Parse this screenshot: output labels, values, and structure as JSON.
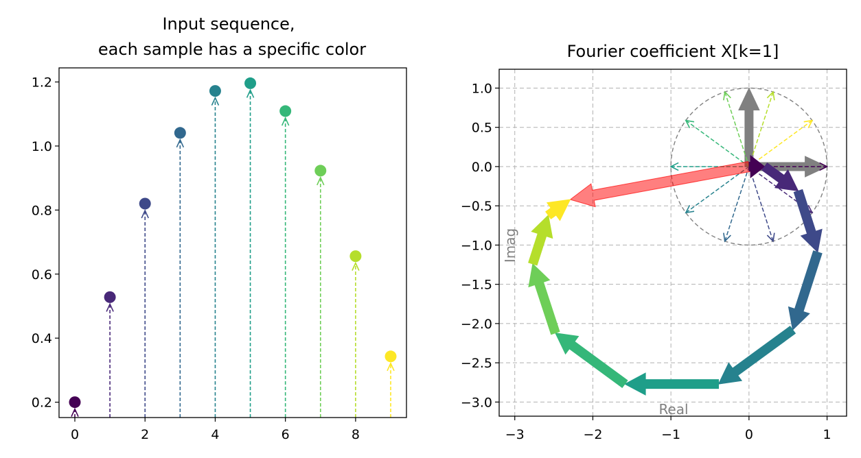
{
  "chart_data": [
    {
      "type": "stem",
      "title_lines": [
        "Input sequence,",
        "each sample has a specific color"
      ],
      "xlabel": "",
      "ylabel": "",
      "x": [
        0,
        1,
        2,
        3,
        4,
        5,
        6,
        7,
        8,
        9
      ],
      "values": [
        0.2,
        0.528,
        0.82,
        1.041,
        1.172,
        1.196,
        1.109,
        0.923,
        0.656,
        0.343
      ],
      "colors": [
        "#440154",
        "#482878",
        "#3e4989",
        "#31688e",
        "#26828e",
        "#1f9e89",
        "#35b779",
        "#6ece58",
        "#b5de2b",
        "#fde725"
      ],
      "xlim": [
        -0.45,
        9.45
      ],
      "ylim": [
        0.152,
        1.244
      ],
      "xticks": [
        0,
        2,
        4,
        6,
        8
      ],
      "yticks": [
        0.2,
        0.4,
        0.6,
        0.8,
        1.0,
        1.2
      ],
      "ytick_labels": [
        "0.2",
        "0.4",
        "0.6",
        "0.8",
        "1.0",
        "1.2"
      ],
      "grid": false
    },
    {
      "type": "phasor",
      "title": "Fourier coefficient X[k=1]",
      "xlabel": "Real",
      "ylabel": "Imag",
      "xlim": [
        -3.2,
        1.25
      ],
      "ylim": [
        -3.18,
        1.24
      ],
      "xticks": [
        -3,
        -2,
        -1,
        0,
        1
      ],
      "xtick_labels": [
        "−3",
        "−2",
        "−1",
        "0",
        "1"
      ],
      "yticks": [
        1.0,
        0.5,
        0.0,
        -0.5,
        -1.0,
        -1.5,
        -2.0,
        -2.5,
        -3.0
      ],
      "ytick_labels": [
        "1.0",
        "0.5",
        "0.0",
        "−0.5",
        "−1.0",
        "−1.5",
        "−2.0",
        "−2.5",
        "−3.0"
      ],
      "grid": true,
      "unit_circle": true,
      "basis_axes": {
        "color": "#808080",
        "real_end": [
          1.0,
          0.0
        ],
        "imag_end": [
          0.0,
          1.0
        ]
      },
      "rotating_unit_vectors": [
        {
          "angle_deg": 0,
          "color": "#440154"
        },
        {
          "angle_deg": -36,
          "color": "#482878"
        },
        {
          "angle_deg": -72,
          "color": "#3e4989"
        },
        {
          "angle_deg": -108,
          "color": "#31688e"
        },
        {
          "angle_deg": -144,
          "color": "#26828e"
        },
        {
          "angle_deg": 180,
          "color": "#1f9e89"
        },
        {
          "angle_deg": 144,
          "color": "#35b779"
        },
        {
          "angle_deg": 108,
          "color": "#6ece58"
        },
        {
          "angle_deg": 72,
          "color": "#b5de2b"
        },
        {
          "angle_deg": 36,
          "color": "#fde725"
        }
      ],
      "chain_segments": [
        {
          "from": [
            0.0,
            0.0
          ],
          "to": [
            0.2,
            0.0
          ],
          "color": "#440154"
        },
        {
          "from": [
            0.2,
            0.0
          ],
          "to": [
            0.63,
            -0.31
          ],
          "color": "#482878"
        },
        {
          "from": [
            0.63,
            -0.31
          ],
          "to": [
            0.88,
            -1.09
          ],
          "color": "#3e4989"
        },
        {
          "from": [
            0.88,
            -1.09
          ],
          "to": [
            0.56,
            -2.08
          ],
          "color": "#31688e"
        },
        {
          "from": [
            0.56,
            -2.08
          ],
          "to": [
            -0.39,
            -2.77
          ],
          "color": "#26828e"
        },
        {
          "from": [
            -0.39,
            -2.77
          ],
          "to": [
            -1.59,
            -2.77
          ],
          "color": "#1f9e89"
        },
        {
          "from": [
            -1.59,
            -2.77
          ],
          "to": [
            -2.48,
            -2.12
          ],
          "color": "#35b779"
        },
        {
          "from": [
            -2.48,
            -2.12
          ],
          "to": [
            -2.77,
            -1.24
          ],
          "color": "#6ece58"
        },
        {
          "from": [
            -2.77,
            -1.24
          ],
          "to": [
            -2.57,
            -0.62
          ],
          "color": "#b5de2b"
        },
        {
          "from": [
            -2.57,
            -0.62
          ],
          "to": [
            -2.29,
            -0.42
          ],
          "color": "#fde725"
        }
      ],
      "result_vector": {
        "from": [
          0.0,
          0.0
        ],
        "to": [
          -2.29,
          -0.42
        ],
        "color": "#ff0000"
      }
    }
  ]
}
